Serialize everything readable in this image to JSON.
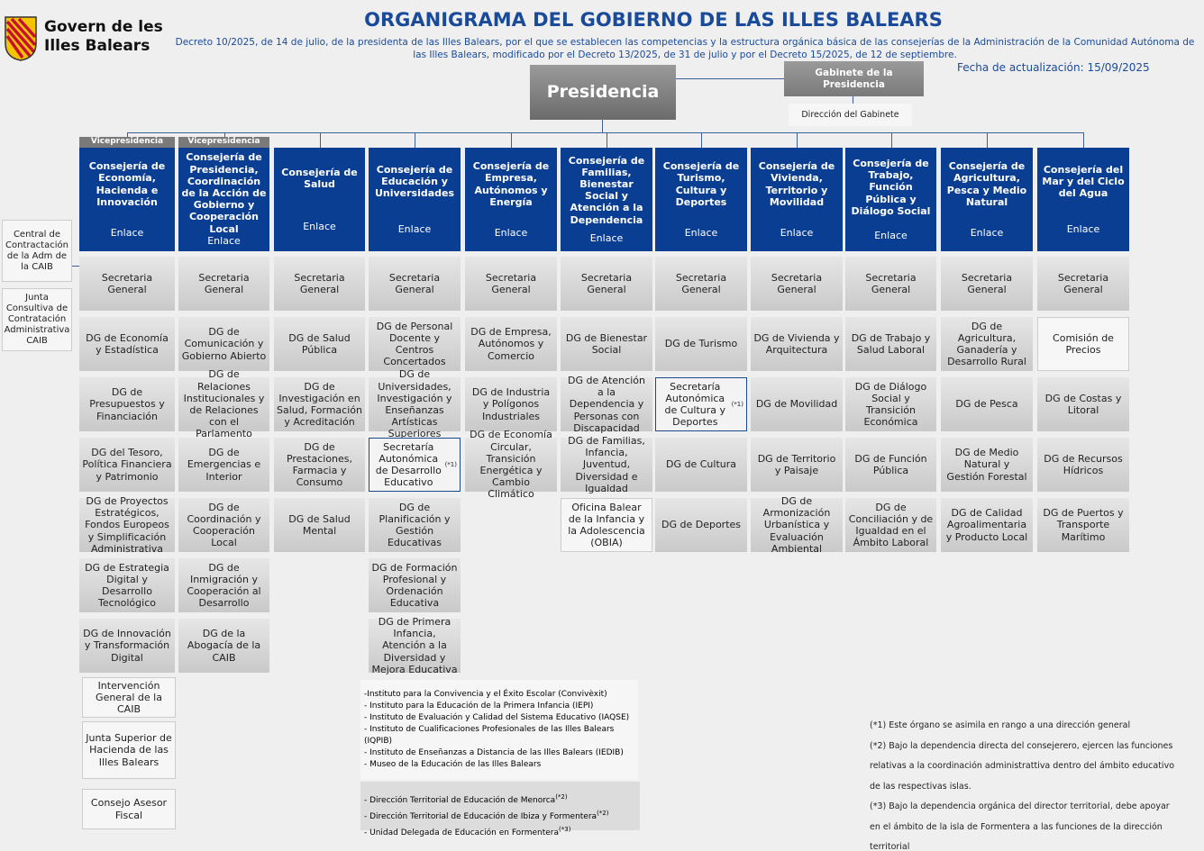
{
  "header": {
    "logo_line1": "Govern de les",
    "logo_line2": "Illes Balears",
    "title": "ORGANIGRAMA DEL GOBIERNO DE LAS ILLES BALEARS",
    "decree": "Decreto 10/2025, de 14 de julio, de la presidenta de las Illes Balears, por el que se establecen las competencias y la estructura orgánica básica de las consejerías de la Administración de la Comunidad Autónoma de las Illes Balears, modificado por el Decreto 13/2025, de 31 de julio y por el Decreto 15/2025, de 12 de septiembre.",
    "update": "Fecha de actualización: 15/09/2025"
  },
  "top": {
    "presidency": "Presidencia",
    "cabinet": "Gabinete de la Presidencia",
    "cabinet_direction": "Dirección del Gabinete"
  },
  "side": [
    "Central de Contractación de la Adm de la CAIB",
    "Junta Consultiva de Contratación Administrativa CAIB"
  ],
  "columns": [
    {
      "vice": "Vicepresidencia",
      "title": "Consejería de Economía, Hacienda e Innovación",
      "link": "Enlace",
      "items": [
        {
          "label": "Secretaria General"
        },
        {
          "label": "DG de Economía y Estadística"
        },
        {
          "label": "DG de Presupuestos y Financiación"
        },
        {
          "label": "DG del Tesoro, Política Financiera y Patrimonio"
        },
        {
          "label": "DG de Proyectos Estratégicos, Fondos Europeos y Simplificación Administrativa"
        },
        {
          "label": "DG de Estrategia Digital y Desarrollo Tecnológico"
        },
        {
          "label": "DG de Innovación y Transformación Digital"
        }
      ]
    },
    {
      "vice": "Vicepresidencia",
      "title": "Consejería de Presidencia, Coordinación de la Acción de Gobierno y Cooperación Local",
      "link": "Enlace",
      "items": [
        {
          "label": "Secretaria General"
        },
        {
          "label": "DG de Comunicación y Gobierno Abierto"
        },
        {
          "label": "DG de Relaciones Institucionales y de Relaciones con el Parlamento"
        },
        {
          "label": "DG de Emergencias e Interior"
        },
        {
          "label": "DG de Coordinación y Cooperación Local"
        },
        {
          "label": "DG de Inmigración y Cooperación al Desarrollo"
        },
        {
          "label": "DG de la Abogacía de la CAIB"
        }
      ]
    },
    {
      "title": "Consejería de Salud",
      "link": "Enlace",
      "items": [
        {
          "label": "Secretaria General"
        },
        {
          "label": "DG de Salud Pública"
        },
        {
          "label": "DG de Investigación en Salud, Formación y Acreditación"
        },
        {
          "label": "DG de Prestaciones, Farmacia y Consumo"
        },
        {
          "label": "DG de Salud Mental"
        }
      ]
    },
    {
      "title": "Consejería de Educación y Universidades",
      "link": "Enlace",
      "items": [
        {
          "label": "Secretaria General"
        },
        {
          "label": "DG de Personal Docente y Centros Concertados"
        },
        {
          "label": "DG de Universidades, Investigación y Enseñanzas Artísticas Superiores"
        },
        {
          "label": "Secretaría Autonómica de Desarrollo Educativo",
          "note": "(*1)"
        },
        {
          "label": "DG de Planificación y Gestión Educativas"
        },
        {
          "label": "DG de Formación Profesional y Ordenación Educativa"
        },
        {
          "label": "DG de Primera Infancia, Atención a la Diversidad y Mejora Educativa"
        }
      ]
    },
    {
      "title": "Consejería de Empresa, Autónomos y Energía",
      "link": "Enlace",
      "items": [
        {
          "label": "Secretaria General"
        },
        {
          "label": "DG de  Empresa, Autónomos y Comercio"
        },
        {
          "label": "DG de Industria y Polígonos Industriales"
        },
        {
          "label": "DG de Economía Circular, Transición Energética y Cambio Climático"
        }
      ]
    },
    {
      "title": "Consejería de Familias, Bienestar Social y Atención a la Dependencia",
      "link": "Enlace",
      "items": [
        {
          "label": "Secretaria General"
        },
        {
          "label": "DG de Bienestar Social"
        },
        {
          "label": "DG de Atención a la Dependencia y Personas con Discapacidad"
        },
        {
          "label": "DG de Familias, Infancia, Juventud, Diversidad e Igualdad"
        },
        {
          "label": "Oficina Balear de la Infancia y la Adolescencia (OBIA)"
        }
      ]
    },
    {
      "title": "Consejería de Turismo, Cultura y Deportes",
      "link": "Enlace",
      "items": [
        {
          "label": "Secretaria General"
        },
        {
          "label": "DG de Turismo"
        },
        {
          "label": "Secretaría Autonómica de Cultura y Deportes",
          "note": "(*1)"
        },
        {
          "label": "DG de Cultura"
        },
        {
          "label": "DG de Deportes"
        }
      ]
    },
    {
      "title": "Consejería de Vivienda, Territorio y Movilidad",
      "link": "Enlace",
      "items": [
        {
          "label": "Secretaria General"
        },
        {
          "label": "DG de Vivienda y Arquitectura"
        },
        {
          "label": "DG de Movilidad"
        },
        {
          "label": "DG de Territorio y Paisaje"
        },
        {
          "label": "DG de Armonización Urbanística y Evaluación Ambiental"
        }
      ]
    },
    {
      "title": "Consejería de Trabajo, Función Pública y Diálogo Social",
      "link": "Enlace",
      "items": [
        {
          "label": "Secretaria General"
        },
        {
          "label": "DG de Trabajo y Salud Laboral"
        },
        {
          "label": "DG de Diálogo Social y Transición Económica"
        },
        {
          "label": "DG de Función Pública"
        },
        {
          "label": "DG de Conciliación y de Igualdad en el Ámbito Laboral"
        }
      ]
    },
    {
      "title": "Consejería de Agricultura, Pesca y Medio Natural",
      "link": "Enlace",
      "items": [
        {
          "label": "Secretaria General"
        },
        {
          "label": "DG de Agricultura, Ganadería y Desarrollo Rural"
        },
        {
          "label": "DG de Pesca"
        },
        {
          "label": "DG de Medio Natural y Gestión Forestal"
        },
        {
          "label": "DG de Calidad Agroalimentaria y Producto Local"
        }
      ]
    },
    {
      "title": "Consejería del Mar y  del Ciclo del Agua",
      "link": "Enlace",
      "items": [
        {
          "label": "Secretaria General"
        },
        {
          "label": "Comisión de Precios"
        },
        {
          "label": "DG de Costas y Litoral"
        },
        {
          "label": "DG de Recursos Hídricos"
        },
        {
          "label": "DG de Puertos y Transporte Marítimo"
        }
      ]
    }
  ],
  "bottom_left": [
    "Intervención General de la CAIB",
    "Junta Superior de Hacienda de las Illes Balears",
    "Consejo Asesor Fiscal"
  ],
  "institutes": [
    "-Instituto para la Convivencia y el Éxito Escolar (Convivèxit)",
    "- Instituto para la Educación de la Primera Infancia (IEPI)",
    "- Instituto de Evaluación y Calidad del Sistema Educativo (IAQSE)",
    "- Instituto de Cualificaciones Profesionales de las Illes Balears (IQPIB)",
    "- Instituto de Enseñanzas a Distancia de las Illes Balears (IEDIB)",
    "- Museo de la Educación de las Illes Balears"
  ],
  "territorial": [
    {
      "label": "- Dirección Territorial de Educación de Menorca",
      "note": "(*2)"
    },
    {
      "label": "- Dirección Territorial de Educación de Ibiza y Formentera",
      "note": "(*2)"
    },
    {
      "label": "- Unidad Delegada de Educación en Formentera",
      "note": "(*3)"
    }
  ],
  "notes": [
    "(*1) Este órgano se asimila en rango a una dirección general",
    "(*2) Bajo la dependencia directa del consejerero, ejercen las funciones relativas a la coordinación administrattiva dentro del ámbito educativo de las respectivas islas.",
    "(*3) Bajo la dependencia orgánica del director territorial, debe apoyar en el ámbito de la isla de Formentera a las funciones de la dirección territorial"
  ]
}
